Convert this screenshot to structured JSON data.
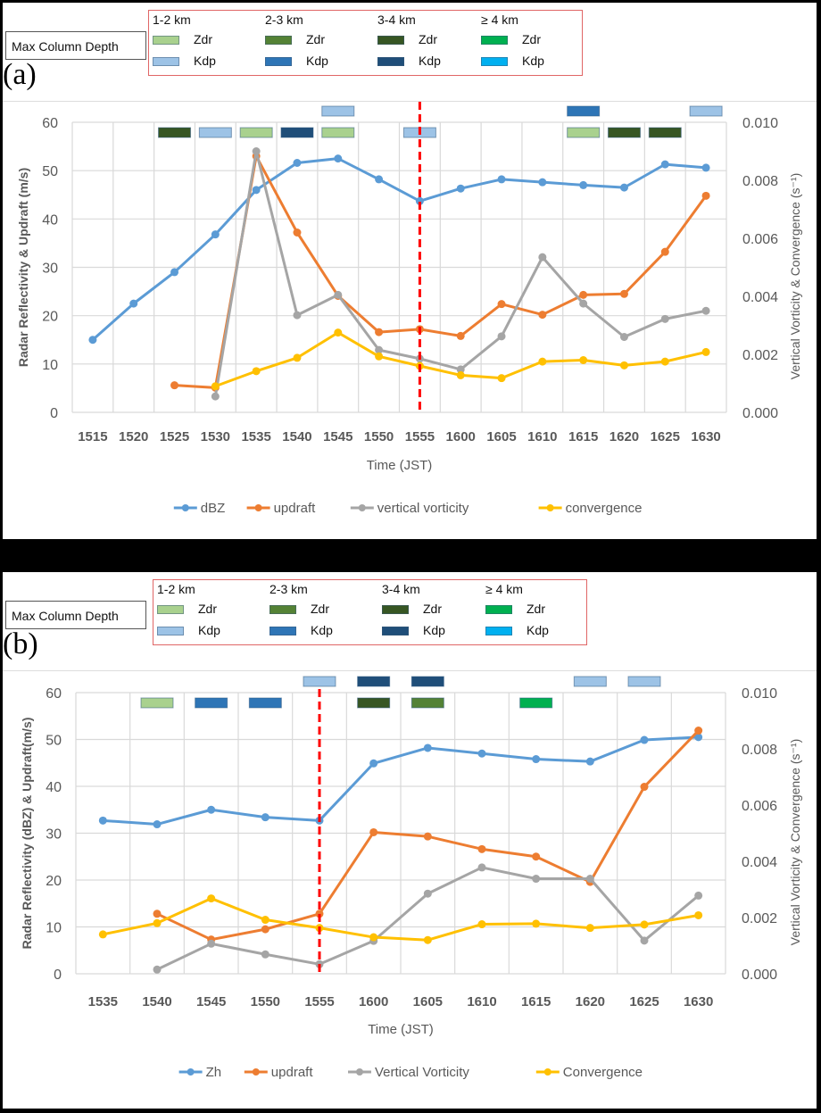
{
  "legend_key": {
    "title": "Max Column Depth",
    "groups": [
      {
        "label": "1-2 km",
        "zdr_color": "#a9d18e",
        "kdp_color": "#9dc3e6"
      },
      {
        "label": "2-3 km",
        "zdr_color": "#548235",
        "kdp_color": "#2e75b6"
      },
      {
        "label": "3-4 km",
        "zdr_color": "#375623",
        "kdp_color": "#1f4e79"
      },
      {
        "label": "≥ 4 km",
        "zdr_color": "#00b050",
        "kdp_color": "#00b0f0"
      }
    ],
    "zdr_label": "Zdr",
    "kdp_label": "Kdp"
  },
  "chart_data": [
    {
      "panel_label": "(a)",
      "type": "line",
      "title": "",
      "xlabel": "Time (JST)",
      "ylabel": "Radar Reflectivity & Updraft (m/s)",
      "y2label": "Vertical Vorticity & Convergence (s⁻¹)",
      "categories": [
        "1515",
        "1520",
        "1525",
        "1530",
        "1535",
        "1540",
        "1545",
        "1550",
        "1555",
        "1600",
        "1605",
        "1610",
        "1615",
        "1620",
        "1625",
        "1630"
      ],
      "ylim": [
        0,
        60
      ],
      "yticks": [
        "0",
        "10",
        "20",
        "30",
        "40",
        "50",
        "60"
      ],
      "y2lim": [
        0,
        0.01
      ],
      "y2ticks": [
        "0.000",
        "0.002",
        "0.004",
        "0.006",
        "0.008",
        "0.010"
      ],
      "grid": true,
      "legend_position": "bottom",
      "vline_at": "1555",
      "series": [
        {
          "name": "dBZ",
          "axis": "left",
          "color": "#5b9bd5",
          "values": [
            15.0,
            22.5,
            29.0,
            36.8,
            46.0,
            51.6,
            52.5,
            48.2,
            43.7,
            46.3,
            48.2,
            47.6,
            47.0,
            46.5,
            51.3,
            50.6
          ]
        },
        {
          "name": "updraft",
          "axis": "left",
          "color": "#ed7d31",
          "values": [
            null,
            null,
            5.6,
            5.1,
            53.0,
            37.2,
            24.1,
            16.6,
            17.2,
            15.8,
            22.4,
            20.2,
            24.3,
            24.5,
            33.2,
            44.8
          ]
        },
        {
          "name": "vertical vorticity",
          "axis": "right",
          "color": "#a5a5a5",
          "values": [
            null,
            null,
            null,
            0.00055,
            0.009,
            0.00335,
            0.00405,
            0.00215,
            0.00185,
            0.00148,
            0.00262,
            0.00535,
            0.00375,
            0.0026,
            0.00322,
            0.0035
          ]
        },
        {
          "name": "convergence",
          "axis": "right",
          "color": "#ffc000",
          "values": [
            null,
            null,
            null,
            0.0009,
            0.00142,
            0.00188,
            0.00275,
            0.00193,
            0.0016,
            0.00128,
            0.00118,
            0.00175,
            0.0018,
            0.00162,
            0.00175,
            0.00208
          ]
        }
      ],
      "column_markers": [
        {
          "time": "1525",
          "row": 2,
          "group": 2,
          "variable": "Zdr"
        },
        {
          "time": "1530",
          "row": 2,
          "group": 0,
          "variable": "Kdp"
        },
        {
          "time": "1535",
          "row": 2,
          "group": 0,
          "variable": "Zdr"
        },
        {
          "time": "1540",
          "row": 2,
          "group": 2,
          "variable": "Kdp"
        },
        {
          "time": "1545",
          "row": 1,
          "group": 0,
          "variable": "Kdp"
        },
        {
          "time": "1545",
          "row": 2,
          "group": 0,
          "variable": "Zdr"
        },
        {
          "time": "1555",
          "row": 2,
          "group": 0,
          "variable": "Kdp"
        },
        {
          "time": "1615",
          "row": 1,
          "group": 1,
          "variable": "Kdp"
        },
        {
          "time": "1615",
          "row": 2,
          "group": 0,
          "variable": "Zdr"
        },
        {
          "time": "1620",
          "row": 2,
          "group": 2,
          "variable": "Zdr"
        },
        {
          "time": "1625",
          "row": 2,
          "group": 2,
          "variable": "Zdr"
        },
        {
          "time": "1630",
          "row": 1,
          "group": 0,
          "variable": "Kdp"
        }
      ]
    },
    {
      "panel_label": "(b)",
      "type": "line",
      "title": "",
      "xlabel": "Time (JST)",
      "ylabel": "Radar Reflectivity  (dBZ) & Updraft(m/s)",
      "y2label": "Vertical Vorticity & Convergence (s⁻¹)",
      "categories": [
        "1535",
        "1540",
        "1545",
        "1550",
        "1555",
        "1600",
        "1605",
        "1610",
        "1615",
        "1620",
        "1625",
        "1630"
      ],
      "ylim": [
        0,
        60
      ],
      "yticks": [
        "0",
        "10",
        "20",
        "30",
        "40",
        "50",
        "60"
      ],
      "y2lim": [
        0,
        0.01
      ],
      "y2ticks": [
        "0.000",
        "0.002",
        "0.004",
        "0.006",
        "0.008",
        "0.010"
      ],
      "grid": true,
      "legend_position": "bottom",
      "vline_at": "1555",
      "series": [
        {
          "name": "Zh",
          "axis": "left",
          "color": "#5b9bd5",
          "values": [
            32.7,
            31.9,
            35.0,
            33.4,
            32.7,
            44.9,
            48.2,
            47.0,
            45.8,
            45.3,
            49.9,
            50.5
          ]
        },
        {
          "name": "updraft",
          "axis": "left",
          "color": "#ed7d31",
          "values": [
            null,
            12.8,
            7.3,
            9.5,
            12.8,
            30.2,
            29.3,
            26.6,
            25.0,
            19.6,
            39.9,
            51.9
          ]
        },
        {
          "name": "Vertical Vorticity",
          "axis": "right",
          "color": "#a5a5a5",
          "values": [
            null,
            0.00015,
            0.00107,
            0.00069,
            0.00034,
            0.00117,
            0.00285,
            0.00378,
            0.00338,
            0.00338,
            0.00118,
            0.00278
          ]
        },
        {
          "name": "Convergence",
          "axis": "right",
          "color": "#ffc000",
          "values": [
            0.0014,
            0.0018,
            0.00268,
            0.00192,
            0.00163,
            0.0013,
            0.0012,
            0.00176,
            0.00178,
            0.00163,
            0.00175,
            0.00208
          ]
        }
      ],
      "column_markers": [
        {
          "time": "1540",
          "row": 2,
          "group": 0,
          "variable": "Zdr"
        },
        {
          "time": "1545",
          "row": 2,
          "group": 1,
          "variable": "Kdp"
        },
        {
          "time": "1550",
          "row": 2,
          "group": 1,
          "variable": "Kdp"
        },
        {
          "time": "1555",
          "row": 1,
          "group": 0,
          "variable": "Kdp"
        },
        {
          "time": "1600",
          "row": 1,
          "group": 2,
          "variable": "Kdp"
        },
        {
          "time": "1600",
          "row": 2,
          "group": 2,
          "variable": "Zdr"
        },
        {
          "time": "1605",
          "row": 1,
          "group": 2,
          "variable": "Kdp"
        },
        {
          "time": "1605",
          "row": 2,
          "group": 1,
          "variable": "Zdr"
        },
        {
          "time": "1615",
          "row": 2,
          "group": 3,
          "variable": "Zdr"
        },
        {
          "time": "1620",
          "row": 1,
          "group": 0,
          "variable": "Kdp"
        },
        {
          "time": "1625",
          "row": 1,
          "group": 0,
          "variable": "Kdp"
        }
      ]
    }
  ]
}
